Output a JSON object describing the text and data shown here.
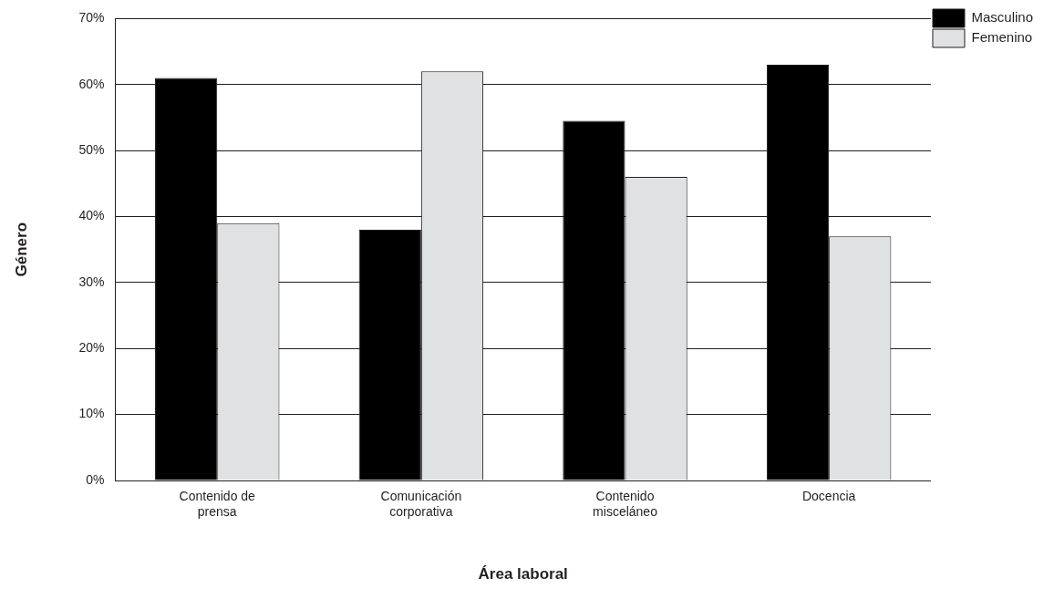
{
  "chart_data": {
    "type": "bar",
    "xlabel": "Área laboral",
    "ylabel": "Género",
    "categories": [
      "Contenido de prensa",
      "Comunicación corporativa",
      "Contenido misceláneo",
      "Docencia"
    ],
    "series": [
      {
        "name": "Masculino",
        "color": "#000000",
        "values": [
          61,
          38,
          54.5,
          63
        ]
      },
      {
        "name": "Femenino",
        "color": "#e0e1e3",
        "values": [
          39,
          62,
          46,
          37
        ]
      }
    ],
    "ylim": [
      0,
      70
    ],
    "yticks": [
      {
        "value": 0,
        "label": "0%"
      },
      {
        "value": 10,
        "label": "10%"
      },
      {
        "value": 20,
        "label": "20%"
      },
      {
        "value": 30,
        "label": "30%"
      },
      {
        "value": 40,
        "label": "40%"
      },
      {
        "value": 50,
        "label": "50%"
      },
      {
        "value": 60,
        "label": "60%"
      },
      {
        "value": 70,
        "label": "70%"
      }
    ],
    "grid": "y",
    "legend": "top right"
  }
}
